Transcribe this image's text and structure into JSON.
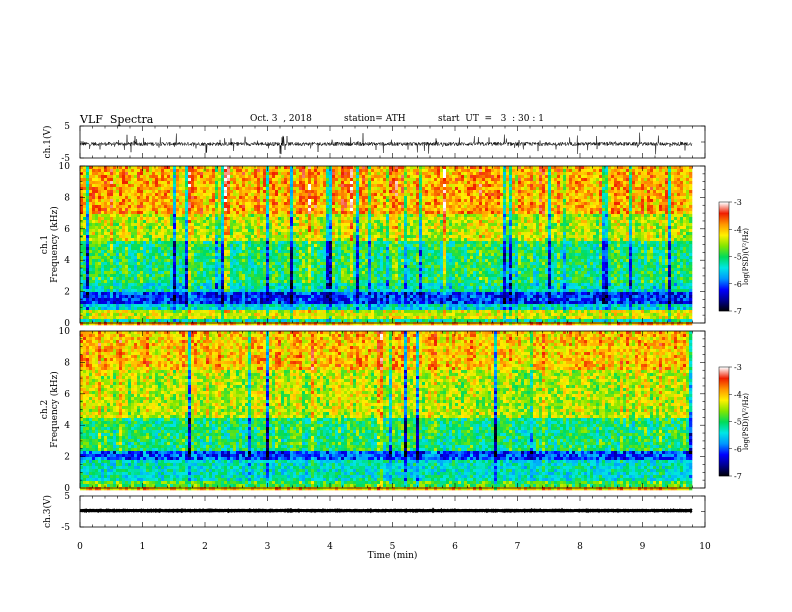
{
  "header": {
    "title": "VLF  Spectra",
    "date": "Oct. 3  , 2018",
    "station": "station= ATH",
    "start": "start  UT  =   3  : 30 : 1"
  },
  "chart_data": [
    {
      "type": "line",
      "panel": "ch1-waveform",
      "ylabel": "ch.1(V)",
      "ylim": [
        -5,
        5
      ],
      "yticks": [
        "5",
        "-5"
      ],
      "xlim": [
        0,
        10
      ],
      "x_data_end": 9.8,
      "baseline": -0.6,
      "noise_amplitude": 1.2,
      "color": "#000000"
    },
    {
      "type": "heatmap",
      "panel": "ch1-spectrogram",
      "ylabel": "Frequency  (kHz)",
      "channel_label": "ch.1",
      "ylim": [
        0,
        10
      ],
      "yticks": [
        "0",
        "2",
        "4",
        "6",
        "8",
        "10"
      ],
      "xlim": [
        0,
        10
      ],
      "x_data_end": 9.8,
      "bands": [
        {
          "from": 0,
          "to": 0.3,
          "level": -5.2
        },
        {
          "from": 0.3,
          "to": 0.9,
          "level": -4.3
        },
        {
          "from": 0.9,
          "to": 1.2,
          "level": -5.4
        },
        {
          "from": 1.2,
          "to": 1.9,
          "level": -6.1
        },
        {
          "from": 1.9,
          "to": 2.5,
          "level": -5.3
        },
        {
          "from": 2.5,
          "to": 5.2,
          "level": -5.0
        },
        {
          "from": 5.2,
          "to": 7.0,
          "level": -4.4
        },
        {
          "from": 7.0,
          "to": 10,
          "level": -3.9
        }
      ],
      "colorbar": {
        "label": "log(PSD)(V²/Hz)",
        "range": [
          -7,
          -3
        ],
        "ticks": [
          "-3",
          "-4",
          "-5",
          "-6",
          "-7"
        ]
      }
    },
    {
      "type": "heatmap",
      "panel": "ch2-spectrogram",
      "ylabel": "Frequency  (kHz)",
      "channel_label": "ch.2",
      "ylim": [
        0,
        10
      ],
      "yticks": [
        "0",
        "2",
        "4",
        "6",
        "8",
        "10"
      ],
      "xlim": [
        0,
        10
      ],
      "x_data_end": 9.8,
      "bands": [
        {
          "from": 0,
          "to": 0.5,
          "level": -4.8
        },
        {
          "from": 0.5,
          "to": 1.8,
          "level": -5.3
        },
        {
          "from": 1.8,
          "to": 2.3,
          "level": -6.0
        },
        {
          "from": 2.3,
          "to": 4.5,
          "level": -5.0
        },
        {
          "from": 4.5,
          "to": 7.5,
          "level": -4.4
        },
        {
          "from": 7.5,
          "to": 10,
          "level": -4.0
        }
      ],
      "colorbar": {
        "label": "log(PSD)(V²/Hz)",
        "range": [
          -7,
          -3
        ],
        "ticks": [
          "-3",
          "-4",
          "-5",
          "-6",
          "-7"
        ]
      }
    },
    {
      "type": "line",
      "panel": "ch3-waveform",
      "ylabel": "ch.3(V)",
      "ylim": [
        -5,
        5
      ],
      "yticks": [
        "5",
        "-5"
      ],
      "xlim": [
        0,
        10
      ],
      "x_data_end": 9.8,
      "baseline": 0.3,
      "noise_amplitude": 0.15,
      "color": "#000000"
    }
  ],
  "xaxis": {
    "label": "Time  (min)",
    "ticks": [
      "0",
      "1",
      "2",
      "3",
      "4",
      "5",
      "6",
      "7",
      "8",
      "9",
      "10"
    ]
  }
}
